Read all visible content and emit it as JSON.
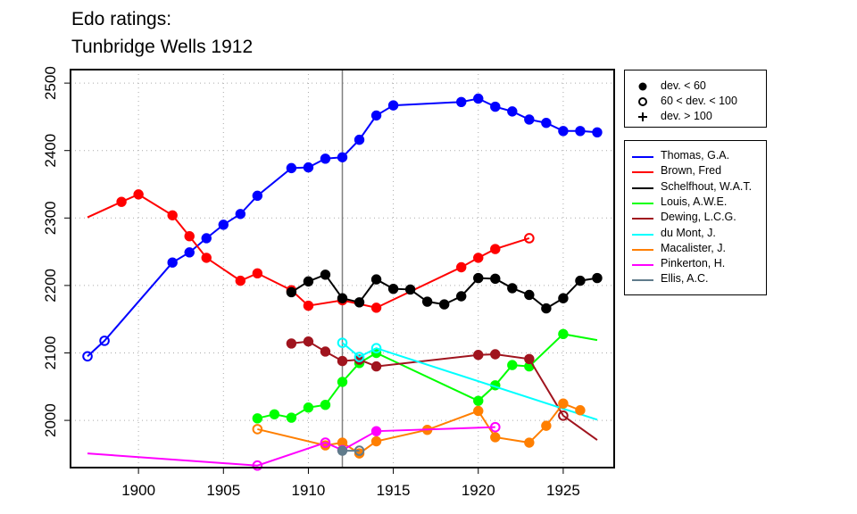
{
  "chart_data": {
    "type": "line",
    "title": [
      "Edo ratings:",
      "Tunbridge Wells 1912"
    ],
    "xlabel": "",
    "ylabel": "",
    "xlim": [
      1896,
      1928
    ],
    "ylim": [
      1930,
      2520
    ],
    "x_ticks": [
      1900,
      1905,
      1910,
      1915,
      1920,
      1925
    ],
    "y_ticks": [
      2000,
      2100,
      2200,
      2300,
      2400,
      2500
    ],
    "grid": true,
    "vertical_marker": 1912,
    "symbol_legend": [
      {
        "symbol": "filled-circle",
        "label": "dev. < 60"
      },
      {
        "symbol": "open-circle",
        "label": "60 < dev. < 100"
      },
      {
        "symbol": "plus",
        "label": "dev. > 100"
      }
    ],
    "series": [
      {
        "name": "Thomas, G.A.",
        "color": "#0000ff",
        "points": [
          [
            1897,
            2095,
            "open"
          ],
          [
            1898,
            2118,
            "open"
          ],
          [
            1902,
            2234,
            "filled"
          ],
          [
            1903,
            2249,
            "filled"
          ],
          [
            1904,
            2270,
            "filled"
          ],
          [
            1905,
            2290,
            "filled"
          ],
          [
            1906,
            2306,
            "filled"
          ],
          [
            1907,
            2333,
            "filled"
          ],
          [
            1909,
            2374,
            "filled"
          ],
          [
            1910,
            2375,
            "filled"
          ],
          [
            1911,
            2388,
            "filled"
          ],
          [
            1912,
            2390,
            "filled"
          ],
          [
            1913,
            2416,
            "filled"
          ],
          [
            1914,
            2452,
            "filled"
          ],
          [
            1915,
            2467,
            "filled"
          ],
          [
            1919,
            2472,
            "filled"
          ],
          [
            1920,
            2477,
            "filled"
          ],
          [
            1921,
            2465,
            "filled"
          ],
          [
            1922,
            2458,
            "filled"
          ],
          [
            1923,
            2446,
            "filled"
          ],
          [
            1924,
            2441,
            "filled"
          ],
          [
            1925,
            2429,
            "filled"
          ],
          [
            1926,
            2429,
            "filled"
          ],
          [
            1927,
            2427,
            "filled"
          ]
        ]
      },
      {
        "name": "Brown, Fred",
        "color": "#ff0000",
        "points": [
          [
            1897,
            2301,
            "none"
          ],
          [
            1899,
            2324,
            "filled"
          ],
          [
            1900,
            2335,
            "filled"
          ],
          [
            1902,
            2304,
            "filled"
          ],
          [
            1903,
            2273,
            "filled"
          ],
          [
            1904,
            2241,
            "filled"
          ],
          [
            1906,
            2207,
            "filled"
          ],
          [
            1907,
            2218,
            "filled"
          ],
          [
            1909,
            2193,
            "filled"
          ],
          [
            1910,
            2170,
            "filled"
          ],
          [
            1912,
            2178,
            "filled"
          ],
          [
            1914,
            2167,
            "filled"
          ],
          [
            1919,
            2227,
            "filled"
          ],
          [
            1920,
            2241,
            "filled"
          ],
          [
            1921,
            2254,
            "filled"
          ],
          [
            1923,
            2270,
            "open"
          ]
        ]
      },
      {
        "name": "Schelfhout, W.A.T.",
        "color": "#000000",
        "points": [
          [
            1909,
            2190,
            "filled"
          ],
          [
            1910,
            2206,
            "filled"
          ],
          [
            1911,
            2216,
            "filled"
          ],
          [
            1912,
            2181,
            "filled"
          ],
          [
            1913,
            2175,
            "filled"
          ],
          [
            1914,
            2209,
            "filled"
          ],
          [
            1915,
            2195,
            "filled"
          ],
          [
            1916,
            2194,
            "filled"
          ],
          [
            1917,
            2176,
            "filled"
          ],
          [
            1918,
            2172,
            "filled"
          ],
          [
            1919,
            2184,
            "filled"
          ],
          [
            1920,
            2211,
            "filled"
          ],
          [
            1921,
            2210,
            "filled"
          ],
          [
            1922,
            2196,
            "filled"
          ],
          [
            1923,
            2186,
            "filled"
          ],
          [
            1924,
            2166,
            "filled"
          ],
          [
            1925,
            2181,
            "filled"
          ],
          [
            1926,
            2207,
            "filled"
          ],
          [
            1927,
            2211,
            "filled"
          ]
        ]
      },
      {
        "name": "Louis, A.W.E.",
        "color": "#00ff00",
        "points": [
          [
            1907,
            2003,
            "filled"
          ],
          [
            1908,
            2009,
            "filled"
          ],
          [
            1909,
            2004,
            "filled"
          ],
          [
            1910,
            2019,
            "filled"
          ],
          [
            1911,
            2023,
            "filled"
          ],
          [
            1912,
            2057,
            "filled"
          ],
          [
            1913,
            2085,
            "filled"
          ],
          [
            1914,
            2100,
            "filled"
          ],
          [
            1920,
            2029,
            "filled"
          ],
          [
            1921,
            2052,
            "filled"
          ],
          [
            1922,
            2082,
            "filled"
          ],
          [
            1923,
            2080,
            "filled"
          ],
          [
            1925,
            2128,
            "filled"
          ],
          [
            1927,
            2119,
            "none"
          ]
        ]
      },
      {
        "name": "Dewing, L.C.G.",
        "color": "#a0141e",
        "points": [
          [
            1909,
            2114,
            "filled"
          ],
          [
            1910,
            2117,
            "filled"
          ],
          [
            1911,
            2102,
            "filled"
          ],
          [
            1912,
            2088,
            "filled"
          ],
          [
            1913,
            2090,
            "filled"
          ],
          [
            1914,
            2080,
            "filled"
          ],
          [
            1920,
            2097,
            "filled"
          ],
          [
            1921,
            2098,
            "filled"
          ],
          [
            1923,
            2091,
            "filled"
          ],
          [
            1925,
            2007,
            "open"
          ],
          [
            1927,
            1971,
            "none"
          ]
        ]
      },
      {
        "name": "du Mont, J.",
        "color": "#00ffff",
        "points": [
          [
            1912,
            2115,
            "open"
          ],
          [
            1913,
            2094,
            "open"
          ],
          [
            1914,
            2107,
            "open"
          ],
          [
            1927,
            2001,
            "none"
          ]
        ]
      },
      {
        "name": "Macalister, J.",
        "color": "#ff7f00",
        "points": [
          [
            1907,
            1987,
            "open"
          ],
          [
            1911,
            1963,
            "filled"
          ],
          [
            1912,
            1967,
            "filled"
          ],
          [
            1913,
            1951,
            "filled"
          ],
          [
            1914,
            1969,
            "filled"
          ],
          [
            1917,
            1986,
            "filled"
          ],
          [
            1920,
            2014,
            "filled"
          ],
          [
            1921,
            1975,
            "filled"
          ],
          [
            1923,
            1967,
            "filled"
          ],
          [
            1924,
            1992,
            "filled"
          ],
          [
            1925,
            2025,
            "filled"
          ],
          [
            1926,
            2015,
            "filled"
          ]
        ]
      },
      {
        "name": "Pinkerton, H.",
        "color": "#ff00ff",
        "points": [
          [
            1897,
            1951,
            "none"
          ],
          [
            1907,
            1933,
            "open"
          ],
          [
            1911,
            1967,
            "open"
          ],
          [
            1912,
            1956,
            "filled"
          ],
          [
            1914,
            1984,
            "filled"
          ],
          [
            1921,
            1990,
            "open"
          ]
        ]
      },
      {
        "name": "Ellis, A.C.",
        "color": "#607b8b",
        "points": [
          [
            1912,
            1955,
            "filled"
          ],
          [
            1913,
            1955,
            "open"
          ]
        ]
      }
    ]
  }
}
